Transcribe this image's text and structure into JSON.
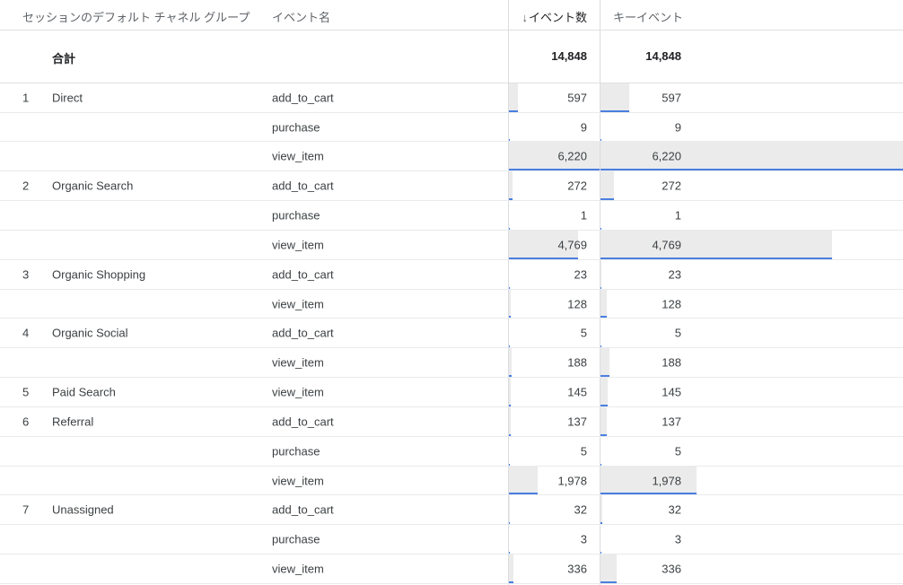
{
  "header": {
    "channel_group": "セッションのデフォルト チャネル グループ",
    "event_name": "イベント名",
    "sort_arrow": "↓",
    "event_count": "イベント数",
    "key_events": "キーイベント"
  },
  "totals": {
    "label": "合計",
    "event_count": "14,848",
    "key_events": "14,848"
  },
  "max_value": 6220,
  "accent_color": "#4a7fe0",
  "rows": [
    {
      "index": "1",
      "channel": "Direct",
      "event": "add_to_cart",
      "event_count": "597",
      "key_events": "597",
      "value": 597
    },
    {
      "index": "",
      "channel": "",
      "event": "purchase",
      "event_count": "9",
      "key_events": "9",
      "value": 9
    },
    {
      "index": "",
      "channel": "",
      "event": "view_item",
      "event_count": "6,220",
      "key_events": "6,220",
      "value": 6220
    },
    {
      "index": "2",
      "channel": "Organic Search",
      "event": "add_to_cart",
      "event_count": "272",
      "key_events": "272",
      "value": 272
    },
    {
      "index": "",
      "channel": "",
      "event": "purchase",
      "event_count": "1",
      "key_events": "1",
      "value": 1
    },
    {
      "index": "",
      "channel": "",
      "event": "view_item",
      "event_count": "4,769",
      "key_events": "4,769",
      "value": 4769
    },
    {
      "index": "3",
      "channel": "Organic Shopping",
      "event": "add_to_cart",
      "event_count": "23",
      "key_events": "23",
      "value": 23
    },
    {
      "index": "",
      "channel": "",
      "event": "view_item",
      "event_count": "128",
      "key_events": "128",
      "value": 128
    },
    {
      "index": "4",
      "channel": "Organic Social",
      "event": "add_to_cart",
      "event_count": "5",
      "key_events": "5",
      "value": 5
    },
    {
      "index": "",
      "channel": "",
      "event": "view_item",
      "event_count": "188",
      "key_events": "188",
      "value": 188
    },
    {
      "index": "5",
      "channel": "Paid Search",
      "event": "view_item",
      "event_count": "145",
      "key_events": "145",
      "value": 145
    },
    {
      "index": "6",
      "channel": "Referral",
      "event": "add_to_cart",
      "event_count": "137",
      "key_events": "137",
      "value": 137
    },
    {
      "index": "",
      "channel": "",
      "event": "purchase",
      "event_count": "5",
      "key_events": "5",
      "value": 5
    },
    {
      "index": "",
      "channel": "",
      "event": "view_item",
      "event_count": "1,978",
      "key_events": "1,978",
      "value": 1978
    },
    {
      "index": "7",
      "channel": "Unassigned",
      "event": "add_to_cart",
      "event_count": "32",
      "key_events": "32",
      "value": 32
    },
    {
      "index": "",
      "channel": "",
      "event": "purchase",
      "event_count": "3",
      "key_events": "3",
      "value": 3
    },
    {
      "index": "",
      "channel": "",
      "event": "view_item",
      "event_count": "336",
      "key_events": "336",
      "value": 336
    }
  ]
}
